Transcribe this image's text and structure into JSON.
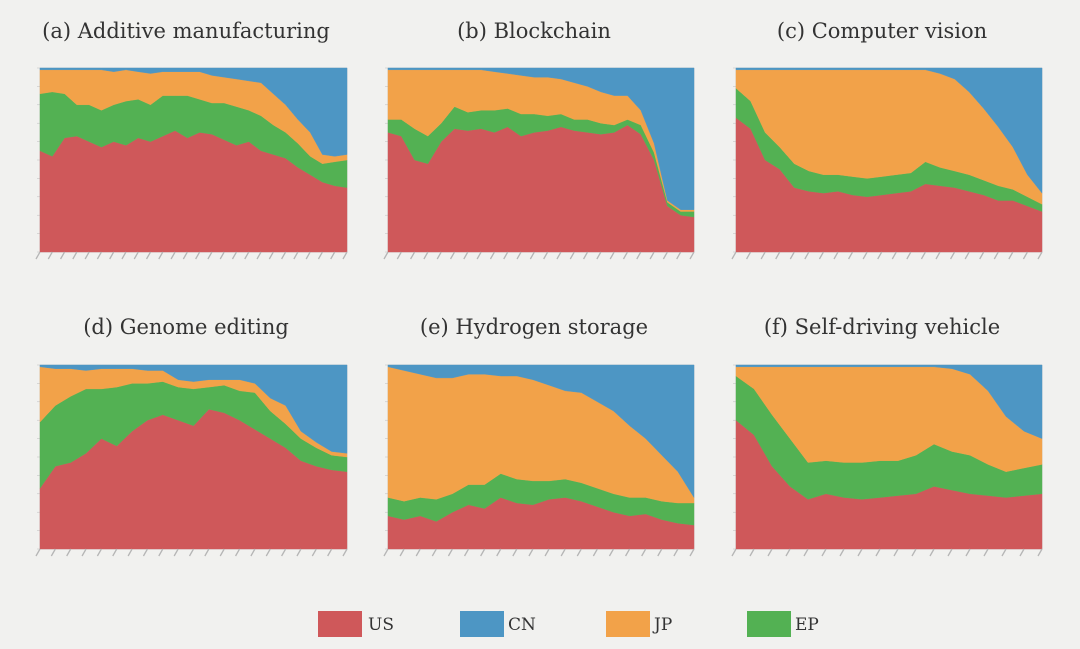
{
  "legend": [
    {
      "key": "US",
      "label": "US",
      "color": "#cf585a"
    },
    {
      "key": "CN",
      "label": "CN",
      "color": "#4d96c4"
    },
    {
      "key": "JP",
      "label": "JP",
      "color": "#f2a249"
    },
    {
      "key": "EP",
      "label": "EP",
      "color": "#53b153"
    }
  ],
  "chart_data": [
    {
      "type": "area",
      "stacked_percent": true,
      "title": "(a) Additive manufacturing",
      "ylim": [
        0,
        1
      ],
      "stack_order": [
        "US",
        "EP",
        "JP",
        "CN"
      ],
      "series": [
        {
          "name": "US",
          "values": [
            0.55,
            0.52,
            0.62,
            0.63,
            0.6,
            0.57,
            0.6,
            0.58,
            0.62,
            0.6,
            0.63,
            0.66,
            0.62,
            0.65,
            0.64,
            0.61,
            0.58,
            0.6,
            0.55,
            0.53,
            0.51,
            0.46,
            0.42,
            0.38,
            0.36,
            0.35
          ]
        },
        {
          "name": "EP",
          "values": [
            0.31,
            0.35,
            0.24,
            0.17,
            0.2,
            0.2,
            0.2,
            0.24,
            0.21,
            0.2,
            0.22,
            0.19,
            0.23,
            0.18,
            0.17,
            0.2,
            0.21,
            0.17,
            0.19,
            0.16,
            0.14,
            0.13,
            0.1,
            0.1,
            0.13,
            0.15
          ]
        },
        {
          "name": "JP",
          "values": [
            0.13,
            0.12,
            0.13,
            0.19,
            0.19,
            0.22,
            0.18,
            0.17,
            0.15,
            0.17,
            0.13,
            0.13,
            0.13,
            0.15,
            0.15,
            0.14,
            0.15,
            0.16,
            0.18,
            0.17,
            0.15,
            0.13,
            0.13,
            0.05,
            0.03,
            0.03
          ]
        },
        {
          "name": "CN",
          "values": [
            0.01,
            0.01,
            0.01,
            0.01,
            0.01,
            0.01,
            0.02,
            0.01,
            0.02,
            0.03,
            0.02,
            0.02,
            0.02,
            0.02,
            0.04,
            0.05,
            0.06,
            0.07,
            0.08,
            0.14,
            0.2,
            0.28,
            0.35,
            0.47,
            0.48,
            0.47
          ]
        }
      ]
    },
    {
      "type": "area",
      "stacked_percent": true,
      "title": "(b) Blockchain",
      "ylim": [
        0,
        1
      ],
      "stack_order": [
        "US",
        "EP",
        "JP",
        "CN"
      ],
      "series": [
        {
          "name": "US",
          "values": [
            0.65,
            0.63,
            0.5,
            0.48,
            0.6,
            0.67,
            0.66,
            0.67,
            0.65,
            0.68,
            0.63,
            0.65,
            0.66,
            0.68,
            0.66,
            0.65,
            0.64,
            0.65,
            0.69,
            0.64,
            0.5,
            0.25,
            0.2,
            0.19
          ]
        },
        {
          "name": "EP",
          "values": [
            0.07,
            0.09,
            0.17,
            0.15,
            0.1,
            0.12,
            0.1,
            0.1,
            0.12,
            0.1,
            0.12,
            0.1,
            0.08,
            0.07,
            0.06,
            0.07,
            0.06,
            0.04,
            0.03,
            0.05,
            0.04,
            0.02,
            0.02,
            0.03
          ]
        },
        {
          "name": "JP",
          "values": [
            0.27,
            0.27,
            0.32,
            0.36,
            0.29,
            0.2,
            0.23,
            0.22,
            0.21,
            0.19,
            0.21,
            0.2,
            0.21,
            0.19,
            0.2,
            0.18,
            0.17,
            0.16,
            0.13,
            0.08,
            0.05,
            0.01,
            0.01,
            0.01
          ]
        },
        {
          "name": "CN",
          "values": [
            0.01,
            0.01,
            0.01,
            0.01,
            0.01,
            0.01,
            0.01,
            0.01,
            0.02,
            0.03,
            0.04,
            0.05,
            0.05,
            0.06,
            0.08,
            0.1,
            0.13,
            0.15,
            0.15,
            0.23,
            0.41,
            0.72,
            0.77,
            0.77
          ]
        }
      ]
    },
    {
      "type": "area",
      "stacked_percent": true,
      "title": "(c) Computer vision",
      "ylim": [
        0,
        1
      ],
      "stack_order": [
        "US",
        "EP",
        "JP",
        "CN"
      ],
      "series": [
        {
          "name": "US",
          "values": [
            0.73,
            0.67,
            0.5,
            0.45,
            0.35,
            0.33,
            0.32,
            0.33,
            0.31,
            0.3,
            0.31,
            0.32,
            0.33,
            0.37,
            0.36,
            0.35,
            0.33,
            0.31,
            0.28,
            0.28,
            0.25,
            0.22
          ]
        },
        {
          "name": "EP",
          "values": [
            0.16,
            0.15,
            0.15,
            0.12,
            0.13,
            0.11,
            0.1,
            0.09,
            0.1,
            0.1,
            0.1,
            0.1,
            0.1,
            0.12,
            0.1,
            0.09,
            0.09,
            0.08,
            0.08,
            0.06,
            0.05,
            0.04
          ]
        },
        {
          "name": "JP",
          "values": [
            0.1,
            0.17,
            0.34,
            0.42,
            0.51,
            0.55,
            0.57,
            0.57,
            0.58,
            0.59,
            0.58,
            0.57,
            0.56,
            0.5,
            0.51,
            0.5,
            0.45,
            0.39,
            0.32,
            0.23,
            0.12,
            0.06
          ]
        },
        {
          "name": "CN",
          "values": [
            0.01,
            0.01,
            0.01,
            0.01,
            0.01,
            0.01,
            0.01,
            0.01,
            0.01,
            0.01,
            0.01,
            0.01,
            0.01,
            0.01,
            0.03,
            0.06,
            0.13,
            0.22,
            0.32,
            0.43,
            0.58,
            0.68
          ]
        }
      ]
    },
    {
      "type": "area",
      "stacked_percent": true,
      "title": "(d) Genome editing",
      "ylim": [
        0,
        1
      ],
      "stack_order": [
        "US",
        "EP",
        "JP",
        "CN"
      ],
      "series": [
        {
          "name": "US",
          "values": [
            0.33,
            0.45,
            0.47,
            0.52,
            0.6,
            0.56,
            0.64,
            0.7,
            0.73,
            0.7,
            0.67,
            0.76,
            0.74,
            0.7,
            0.65,
            0.6,
            0.55,
            0.48,
            0.45,
            0.43,
            0.42
          ]
        },
        {
          "name": "EP",
          "values": [
            0.36,
            0.33,
            0.36,
            0.35,
            0.27,
            0.32,
            0.26,
            0.2,
            0.18,
            0.18,
            0.2,
            0.12,
            0.15,
            0.16,
            0.2,
            0.15,
            0.13,
            0.12,
            0.1,
            0.08,
            0.08
          ]
        },
        {
          "name": "JP",
          "values": [
            0.3,
            0.2,
            0.15,
            0.1,
            0.11,
            0.1,
            0.08,
            0.07,
            0.06,
            0.04,
            0.04,
            0.04,
            0.03,
            0.06,
            0.05,
            0.07,
            0.1,
            0.04,
            0.03,
            0.02,
            0.02
          ]
        },
        {
          "name": "CN",
          "values": [
            0.01,
            0.02,
            0.02,
            0.03,
            0.02,
            0.02,
            0.02,
            0.03,
            0.03,
            0.08,
            0.09,
            0.08,
            0.08,
            0.08,
            0.1,
            0.18,
            0.22,
            0.36,
            0.42,
            0.47,
            0.48
          ]
        }
      ]
    },
    {
      "type": "area",
      "stacked_percent": true,
      "title": "(e) Hydrogen storage",
      "ylim": [
        0,
        1
      ],
      "stack_order": [
        "US",
        "EP",
        "JP",
        "CN"
      ],
      "series": [
        {
          "name": "US",
          "values": [
            0.18,
            0.16,
            0.18,
            0.15,
            0.2,
            0.24,
            0.22,
            0.28,
            0.25,
            0.24,
            0.27,
            0.28,
            0.26,
            0.23,
            0.2,
            0.18,
            0.19,
            0.16,
            0.14,
            0.13
          ]
        },
        {
          "name": "EP",
          "values": [
            0.1,
            0.1,
            0.1,
            0.12,
            0.1,
            0.11,
            0.13,
            0.13,
            0.13,
            0.13,
            0.1,
            0.1,
            0.1,
            0.1,
            0.1,
            0.1,
            0.09,
            0.1,
            0.11,
            0.12
          ]
        },
        {
          "name": "JP",
          "values": [
            0.71,
            0.71,
            0.67,
            0.66,
            0.63,
            0.6,
            0.6,
            0.53,
            0.56,
            0.55,
            0.52,
            0.48,
            0.49,
            0.47,
            0.45,
            0.39,
            0.32,
            0.25,
            0.17,
            0.03
          ]
        },
        {
          "name": "CN",
          "values": [
            0.01,
            0.03,
            0.05,
            0.07,
            0.07,
            0.05,
            0.05,
            0.06,
            0.06,
            0.08,
            0.11,
            0.14,
            0.15,
            0.2,
            0.25,
            0.33,
            0.4,
            0.49,
            0.58,
            0.72
          ]
        }
      ]
    },
    {
      "type": "area",
      "stacked_percent": true,
      "title": "(f) Self-driving vehicle",
      "ylim": [
        0,
        1
      ],
      "stack_order": [
        "US",
        "EP",
        "JP",
        "CN"
      ],
      "series": [
        {
          "name": "US",
          "values": [
            0.7,
            0.62,
            0.45,
            0.34,
            0.27,
            0.3,
            0.28,
            0.27,
            0.28,
            0.29,
            0.3,
            0.34,
            0.32,
            0.3,
            0.29,
            0.28,
            0.29,
            0.3
          ]
        },
        {
          "name": "EP",
          "values": [
            0.24,
            0.25,
            0.28,
            0.26,
            0.2,
            0.18,
            0.19,
            0.2,
            0.2,
            0.19,
            0.21,
            0.23,
            0.21,
            0.21,
            0.17,
            0.14,
            0.15,
            0.16
          ]
        },
        {
          "name": "JP",
          "values": [
            0.05,
            0.12,
            0.26,
            0.39,
            0.52,
            0.51,
            0.52,
            0.52,
            0.51,
            0.51,
            0.48,
            0.42,
            0.45,
            0.44,
            0.4,
            0.3,
            0.2,
            0.14
          ]
        },
        {
          "name": "CN",
          "values": [
            0.01,
            0.01,
            0.01,
            0.01,
            0.01,
            0.01,
            0.01,
            0.01,
            0.01,
            0.01,
            0.01,
            0.01,
            0.02,
            0.05,
            0.14,
            0.28,
            0.36,
            0.4
          ]
        }
      ]
    }
  ]
}
